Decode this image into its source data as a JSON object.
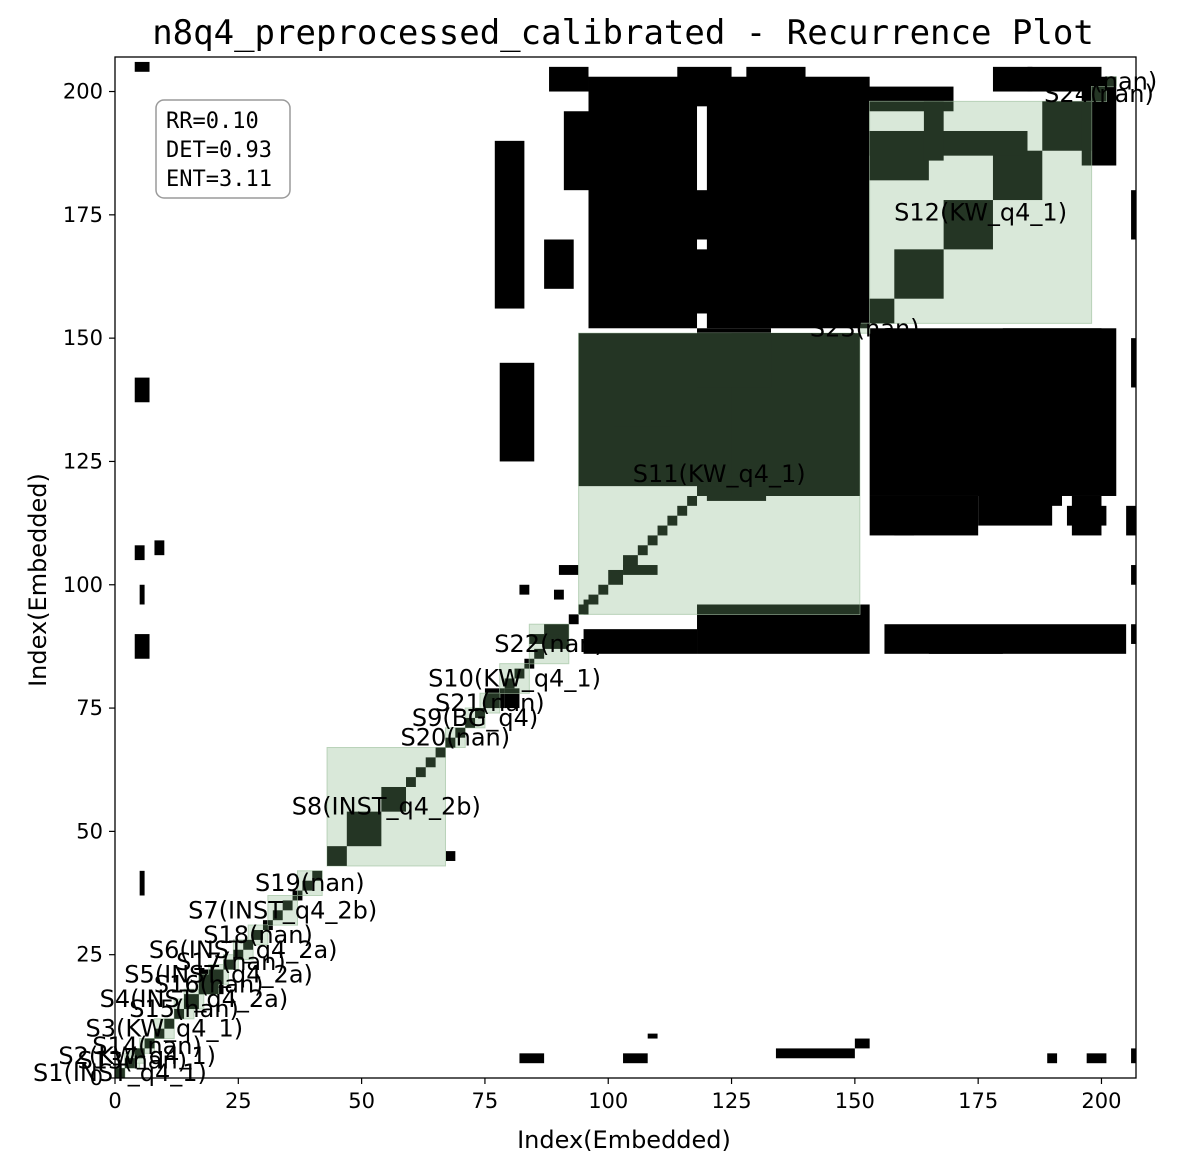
{
  "chart_data": {
    "type": "heatmap",
    "title": "n8q4_preprocessed_calibrated - Recurrence Plot",
    "xlabel": "Index(Embedded)",
    "ylabel": "Index(Embedded)",
    "xlim": [
      0,
      207
    ],
    "ylim": [
      0,
      207
    ],
    "x_ticks": [
      0,
      25,
      50,
      75,
      100,
      125,
      150,
      175,
      200
    ],
    "y_ticks": [
      0,
      25,
      50,
      75,
      100,
      125,
      150,
      175,
      200
    ],
    "grid": false,
    "colors": {
      "recurrence": "#000000",
      "segment_fill": "#d5e6d5",
      "segment_edge": "#b8d2b8",
      "overlap": "#243524"
    },
    "stats": {
      "rr": "RR=0.10",
      "det": "DET=0.93",
      "ent": "ENT=3.11"
    },
    "segments": [
      {
        "label": "S1(INST_q4_1)",
        "start": 0,
        "end": 2
      },
      {
        "label": "S13(nan)",
        "start": 2,
        "end": 5
      },
      {
        "label": "S2(KW_q4_1)",
        "start": 3,
        "end": 6
      },
      {
        "label": "S14(nan)",
        "start": 5,
        "end": 8
      },
      {
        "label": "S3(KW_q4_1)",
        "start": 8,
        "end": 12
      },
      {
        "label": "S15(nan)",
        "start": 12,
        "end": 16
      },
      {
        "label": "S4(INST_q4_2a)",
        "start": 14,
        "end": 18
      },
      {
        "label": "S16(nan)",
        "start": 17,
        "end": 21
      },
      {
        "label": "S5(INST_q4_2a)",
        "start": 19,
        "end": 23
      },
      {
        "label": "S17(nan)",
        "start": 22,
        "end": 25
      },
      {
        "label": "S6(INST_q4_2a)",
        "start": 24,
        "end": 28
      },
      {
        "label": "S18(nan)",
        "start": 27,
        "end": 31
      },
      {
        "label": "S7(INST_q4_2b)",
        "start": 31,
        "end": 37
      },
      {
        "label": "S19(nan)",
        "start": 37,
        "end": 42
      },
      {
        "label": "S8(INST_q4_2b)",
        "start": 43,
        "end": 67
      },
      {
        "label": "S20(nan)",
        "start": 67,
        "end": 71
      },
      {
        "label": "S9(BG_q4)",
        "start": 71,
        "end": 75
      },
      {
        "label": "S21(nan)",
        "start": 74,
        "end": 78
      },
      {
        "label": "S10(KW_q4_1)",
        "start": 78,
        "end": 84
      },
      {
        "label": "S22(nan)",
        "start": 84,
        "end": 92
      },
      {
        "label": "S11(KW_q4_1)",
        "start": 94,
        "end": 151
      },
      {
        "label": "S23(nan)",
        "start": 151,
        "end": 153
      },
      {
        "label": "S12(KW_q4_1)",
        "start": 153,
        "end": 198
      },
      {
        "label": "S24(nan)",
        "start": 198,
        "end": 201
      },
      {
        "label": "S?(nan)",
        "start": 201,
        "end": 203
      }
    ],
    "recurrence_blocks": [
      [
        0,
        0,
        2,
        2
      ],
      [
        2,
        2,
        4,
        4
      ],
      [
        4,
        4,
        6,
        6
      ],
      [
        6,
        6,
        8,
        8
      ],
      [
        8,
        8,
        10,
        10
      ],
      [
        10,
        10,
        12,
        12
      ],
      [
        12,
        12,
        14,
        14
      ],
      [
        14,
        14,
        17,
        17
      ],
      [
        17,
        17,
        22,
        22
      ],
      [
        22,
        22,
        24,
        24
      ],
      [
        24,
        24,
        26,
        26
      ],
      [
        26,
        26,
        28,
        28
      ],
      [
        28,
        28,
        30,
        30
      ],
      [
        30,
        30,
        32,
        32
      ],
      [
        32,
        32,
        34,
        34
      ],
      [
        34,
        34,
        36,
        36
      ],
      [
        36,
        36,
        38,
        38
      ],
      [
        38,
        38,
        40,
        40
      ],
      [
        40,
        40,
        42,
        42
      ],
      [
        43,
        43,
        47,
        47
      ],
      [
        47,
        47,
        54,
        54
      ],
      [
        54,
        54,
        59,
        59
      ],
      [
        59,
        59,
        61,
        61
      ],
      [
        61,
        61,
        63,
        63
      ],
      [
        63,
        63,
        65,
        65
      ],
      [
        65,
        65,
        67,
        67
      ],
      [
        67,
        67,
        69,
        69
      ],
      [
        69,
        69,
        71,
        71
      ],
      [
        71,
        71,
        73,
        73
      ],
      [
        73,
        73,
        75,
        75
      ],
      [
        75,
        75,
        79,
        79
      ],
      [
        79,
        79,
        81,
        81
      ],
      [
        81,
        81,
        83,
        83
      ],
      [
        83,
        83,
        85,
        85
      ],
      [
        85,
        85,
        87,
        87
      ],
      [
        87,
        87,
        92,
        92
      ],
      [
        92,
        92,
        94,
        94
      ],
      [
        94,
        94,
        96,
        96
      ],
      [
        96,
        96,
        98,
        98
      ],
      [
        98,
        98,
        100,
        100
      ],
      [
        100,
        100,
        103,
        103
      ],
      [
        103,
        103,
        106,
        106
      ],
      [
        106,
        106,
        108,
        108
      ],
      [
        108,
        108,
        110,
        110
      ],
      [
        110,
        110,
        112,
        112
      ],
      [
        112,
        112,
        114,
        114
      ],
      [
        114,
        114,
        116,
        116
      ],
      [
        116,
        116,
        118,
        118
      ],
      [
        118,
        118,
        151,
        151
      ],
      [
        153,
        153,
        158,
        158
      ],
      [
        158,
        158,
        168,
        168
      ],
      [
        168,
        168,
        178,
        178
      ],
      [
        178,
        178,
        188,
        188
      ],
      [
        188,
        188,
        198,
        198
      ],
      [
        198,
        198,
        201,
        201
      ],
      [
        5,
        37,
        6,
        42
      ],
      [
        5,
        96,
        6,
        100
      ],
      [
        67,
        44,
        69,
        46
      ],
      [
        89,
        97,
        91,
        99
      ],
      [
        120,
        117,
        132,
        132
      ],
      [
        95,
        94,
        96,
        97
      ]
    ],
    "recurrence_regions": [
      [
        94,
        120,
        150,
        151
      ],
      [
        101,
        124,
        113,
        132
      ],
      [
        125,
        118,
        150,
        151
      ],
      [
        118,
        140,
        133,
        152
      ],
      [
        84,
        88,
        90,
        90
      ],
      [
        79,
        75,
        82,
        79
      ],
      [
        96,
        152,
        118,
        203
      ],
      [
        120,
        152,
        153,
        203
      ],
      [
        118,
        86,
        153,
        96
      ],
      [
        95,
        86,
        118,
        91
      ],
      [
        156,
        86,
        205,
        92
      ],
      [
        165,
        86,
        180,
        90
      ],
      [
        153,
        118,
        203,
        152
      ],
      [
        153,
        110,
        175,
        118
      ],
      [
        175,
        112,
        190,
        120
      ],
      [
        194,
        110,
        200,
        118
      ],
      [
        78,
        125,
        85,
        145
      ],
      [
        82,
        98,
        84,
        100
      ],
      [
        77,
        156,
        83,
        190
      ],
      [
        87,
        160,
        93,
        170
      ],
      [
        91,
        180,
        98,
        196
      ],
      [
        88,
        200,
        96,
        205
      ],
      [
        104,
        178,
        106,
        188
      ],
      [
        128,
        187,
        185,
        192
      ],
      [
        138,
        180,
        150,
        187
      ],
      [
        150,
        182,
        165,
        192
      ],
      [
        128,
        162,
        132,
        172
      ],
      [
        115,
        170,
        126,
        180
      ],
      [
        115,
        155,
        125,
        168
      ],
      [
        142,
        160,
        150,
        168
      ],
      [
        112,
        190,
        117,
        198
      ],
      [
        180,
        150,
        200,
        152
      ],
      [
        183,
        120,
        190,
        150
      ],
      [
        196,
        185,
        203,
        203
      ],
      [
        185,
        200,
        200,
        205
      ],
      [
        114,
        197,
        125,
        205
      ],
      [
        128,
        198,
        140,
        205
      ],
      [
        152,
        196,
        170,
        201
      ],
      [
        178,
        200,
        186,
        205
      ],
      [
        164,
        186,
        168,
        200
      ],
      [
        136,
        175,
        150,
        178
      ],
      [
        158,
        110,
        162,
        116
      ],
      [
        185,
        116,
        192,
        120
      ],
      [
        193,
        112,
        201,
        116
      ],
      [
        205,
        110,
        207,
        116
      ],
      [
        90,
        102,
        94,
        104
      ],
      [
        103,
        102,
        110,
        104
      ],
      [
        82,
        3,
        87,
        5
      ],
      [
        103,
        3,
        108,
        5
      ],
      [
        134,
        4,
        150,
        6
      ],
      [
        189,
        3,
        191,
        5
      ],
      [
        197,
        3,
        201,
        5
      ],
      [
        206,
        3,
        207,
        6
      ],
      [
        108,
        8,
        110,
        9
      ],
      [
        150,
        6,
        153,
        8
      ],
      [
        4,
        137,
        7,
        142
      ],
      [
        4,
        85,
        7,
        90
      ],
      [
        4,
        105,
        6,
        108
      ],
      [
        8,
        106,
        10,
        109
      ],
      [
        4,
        204,
        7,
        206
      ],
      [
        206,
        140,
        207,
        150
      ],
      [
        206,
        170,
        207,
        180
      ],
      [
        206,
        100,
        207,
        104
      ],
      [
        206,
        88,
        207,
        92
      ]
    ]
  }
}
